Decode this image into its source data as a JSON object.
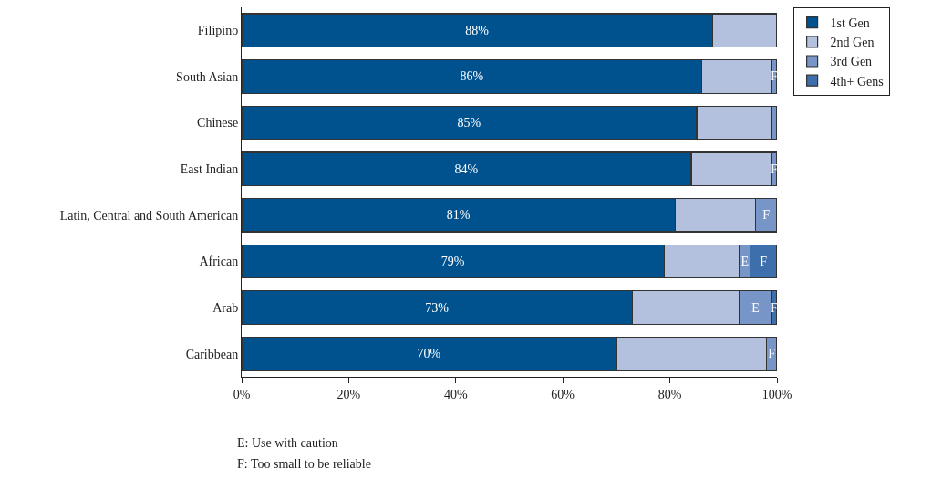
{
  "chart_data": {
    "type": "bar",
    "orientation": "horizontal",
    "stacked": true,
    "categories": [
      "Filipino",
      "South Asian",
      "Chinese",
      "East Indian",
      "Latin, Central and South American",
      "African",
      "Arab",
      "Caribbean"
    ],
    "series": [
      {
        "name": "1st Gen",
        "color": "#00528f",
        "values": [
          88,
          86,
          85,
          84,
          81,
          79,
          73,
          70
        ],
        "value_labels": [
          "88%",
          "86%",
          "85%",
          "84%",
          "81%",
          "79%",
          "73%",
          "70%"
        ]
      },
      {
        "name": "2nd Gen",
        "color": "#b3c1de",
        "values": [
          12,
          13,
          14,
          15,
          15,
          14,
          20,
          28
        ]
      },
      {
        "name": "3rd Gen",
        "color": "#7795c6",
        "values": [
          null,
          1,
          1,
          1,
          4,
          2,
          6,
          2
        ],
        "value_labels": [
          null,
          "F",
          null,
          "F",
          "F",
          "E",
          "E",
          "F"
        ]
      },
      {
        "name": "4th+ Gens",
        "color": "#3d6fac",
        "values": [
          null,
          null,
          null,
          null,
          null,
          5,
          1,
          null
        ],
        "value_labels": [
          null,
          null,
          null,
          null,
          null,
          "F",
          "F",
          null
        ]
      }
    ],
    "xlim": [
      0,
      100
    ],
    "xticks": [
      {
        "value": 0,
        "label": "0%"
      },
      {
        "value": 20,
        "label": "20%"
      },
      {
        "value": 40,
        "label": "40%"
      },
      {
        "value": 60,
        "label": "60%"
      },
      {
        "value": 80,
        "label": "80%"
      },
      {
        "value": 100,
        "label": "100%"
      }
    ],
    "legend": "top right",
    "annotations": [
      "E: Use with caution",
      "F: Too small to be reliable"
    ]
  }
}
